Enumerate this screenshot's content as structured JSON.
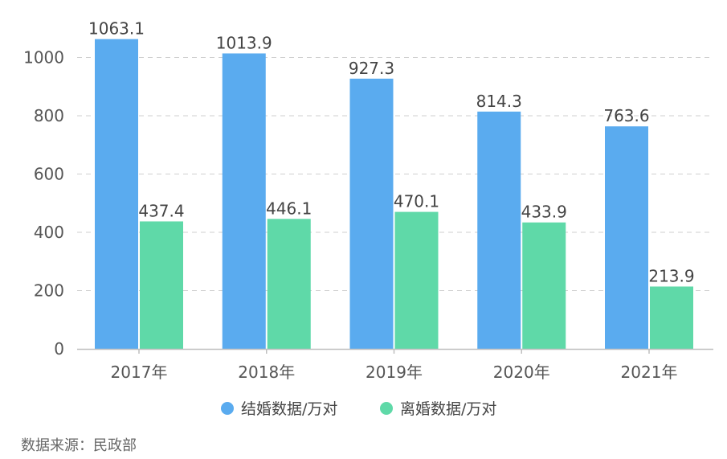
{
  "chart_data": {
    "type": "bar",
    "categories": [
      "2017年",
      "2018年",
      "2019年",
      "2020年",
      "2021年"
    ],
    "series": [
      {
        "name": "结婚数据/万对",
        "values": [
          1063.1,
          1013.9,
          927.3,
          814.3,
          763.6
        ],
        "color": "#5aabef"
      },
      {
        "name": "离婚数据/万对",
        "values": [
          437.4,
          446.1,
          470.1,
          433.9,
          213.9
        ],
        "color": "#5fd9a8"
      }
    ],
    "data_labels": [
      [
        "1063.1",
        "1013.9",
        "927.3",
        "814.3",
        "763.6"
      ],
      [
        "437.4",
        "446.1",
        "470.1",
        "433.9",
        "213.9"
      ]
    ],
    "yticks": [
      "0",
      "200",
      "400",
      "600",
      "800",
      "1000"
    ],
    "ylim": [
      0,
      1080
    ],
    "grid": true,
    "legend_position": "bottom-center"
  },
  "source_note": "数据来源：民政部"
}
